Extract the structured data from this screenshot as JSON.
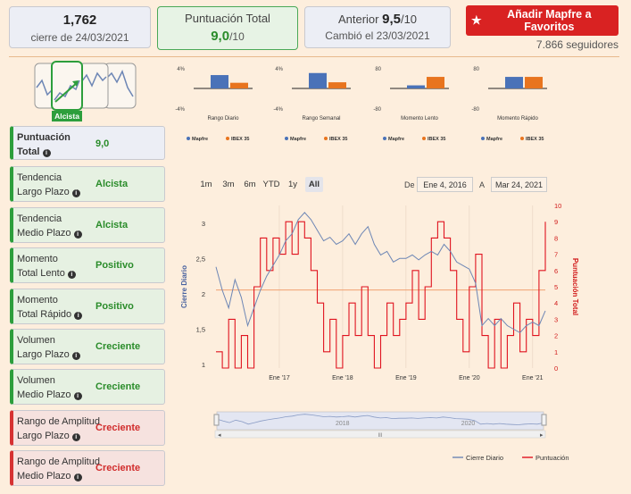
{
  "header": {
    "price": "1,762",
    "price_sub": "cierre de 24/03/2021",
    "score_title": "Puntuación Total",
    "score_value": "9,0",
    "score_max": "/10",
    "prev_label": "Anterior",
    "prev_value": "9,5",
    "prev_max": "/10",
    "prev_sub": "Cambió el 23/03/2021",
    "favorite_button": "Añadir Mapfre a Favoritos",
    "followers": "7.866 seguidores"
  },
  "trend": {
    "label": "Alcista",
    "color": "#2a9d3a"
  },
  "indicators": [
    {
      "l1": "Puntuación",
      "l2": "Total",
      "value": "9,0",
      "style": "blue"
    },
    {
      "l1": "Tendencia",
      "l2": "Largo Plazo",
      "value": "Alcista",
      "style": "green"
    },
    {
      "l1": "Tendencia",
      "l2": "Medio Plazo",
      "value": "Alcista",
      "style": "green"
    },
    {
      "l1": "Momento",
      "l2": "Total Lento",
      "value": "Positivo",
      "style": "green"
    },
    {
      "l1": "Momento",
      "l2": "Total Rápido",
      "value": "Positivo",
      "style": "green"
    },
    {
      "l1": "Volumen",
      "l2": "Largo Plazo",
      "value": "Creciente",
      "style": "green"
    },
    {
      "l1": "Volumen",
      "l2": "Medio Plazo",
      "value": "Creciente",
      "style": "green"
    },
    {
      "l1": "Rango de Amplitud",
      "l2": "Largo Plazo",
      "value": "Creciente",
      "style": "red"
    },
    {
      "l1": "Rango de Amplitud",
      "l2": "Medio Plazo",
      "value": "Creciente",
      "style": "red"
    }
  ],
  "colors": {
    "mapfre": "#4a72b8",
    "ibex": "#e8741e",
    "price_line": "#6d86b5",
    "score_line": "#e0131f",
    "accent_green": "#2d9e3c",
    "accent_red": "#d92222"
  },
  "chart_data": [
    {
      "type": "bar",
      "title": "Rango Diario",
      "ylim": [
        -4,
        4
      ],
      "tick_top": "4%",
      "tick_bottom": "-4%",
      "series": [
        {
          "name": "Mapfre",
          "values": [
            2.6
          ]
        },
        {
          "name": "IBEX 35",
          "values": [
            1.1
          ]
        }
      ]
    },
    {
      "type": "bar",
      "title": "Rango Semanal",
      "ylim": [
        -4,
        4
      ],
      "tick_top": "4%",
      "tick_bottom": "-4%",
      "series": [
        {
          "name": "Mapfre",
          "values": [
            3.0
          ]
        },
        {
          "name": "IBEX 35",
          "values": [
            1.2
          ]
        }
      ]
    },
    {
      "type": "bar",
      "title": "Momento Lento",
      "ylim": [
        -80,
        80
      ],
      "tick_top": "80",
      "tick_bottom": "-80",
      "series": [
        {
          "name": "Mapfre",
          "values": [
            12
          ]
        },
        {
          "name": "IBEX 35",
          "values": [
            45
          ]
        }
      ]
    },
    {
      "type": "bar",
      "title": "Momento Rápido",
      "ylim": [
        -80,
        80
      ],
      "tick_top": "80",
      "tick_bottom": "-80",
      "series": [
        {
          "name": "Mapfre",
          "values": [
            45
          ]
        },
        {
          "name": "IBEX 35",
          "values": [
            45
          ]
        }
      ]
    },
    {
      "type": "line",
      "ylabel": "Cierre Diario",
      "ylabel_right": "Puntuación Total",
      "x_ticks": [
        "Ene '17",
        "Ene '18",
        "Ene '19",
        "Ene '20",
        "Ene '21"
      ],
      "y_ticks": [
        "1",
        "1,5",
        "2",
        "2,5",
        "3"
      ],
      "ylim": [
        0.95,
        3.25
      ],
      "y2_ticks": [
        "0",
        "1",
        "2",
        "3",
        "4",
        "5",
        "6",
        "7",
        "8",
        "9",
        "10"
      ],
      "y2lim": [
        0,
        10
      ],
      "range_buttons": [
        "1m",
        "3m",
        "6m",
        "YTD",
        "1y",
        "All"
      ],
      "range_active": "All",
      "date_from_label": "De",
      "date_from": "Ene 4, 2016",
      "date_to_label": "A",
      "date_to": "Mar 24, 2021",
      "navigator_ticks": [
        "2018",
        "2020"
      ],
      "legend": [
        "Cierre Diario",
        "Puntuación"
      ],
      "reference_value": 4.8,
      "price_points": [
        [
          2016.0,
          2.38
        ],
        [
          2016.1,
          2.05
        ],
        [
          2016.2,
          1.8
        ],
        [
          2016.3,
          2.2
        ],
        [
          2016.4,
          1.95
        ],
        [
          2016.5,
          1.55
        ],
        [
          2016.6,
          1.8
        ],
        [
          2016.7,
          2.05
        ],
        [
          2016.8,
          2.25
        ],
        [
          2016.9,
          2.4
        ],
        [
          2017.0,
          2.55
        ],
        [
          2017.1,
          2.75
        ],
        [
          2017.2,
          2.85
        ],
        [
          2017.3,
          3.05
        ],
        [
          2017.4,
          3.15
        ],
        [
          2017.5,
          3.05
        ],
        [
          2017.6,
          2.9
        ],
        [
          2017.7,
          2.75
        ],
        [
          2017.8,
          2.8
        ],
        [
          2017.9,
          2.7
        ],
        [
          2018.0,
          2.75
        ],
        [
          2018.1,
          2.85
        ],
        [
          2018.2,
          2.7
        ],
        [
          2018.3,
          2.85
        ],
        [
          2018.4,
          2.95
        ],
        [
          2018.5,
          2.7
        ],
        [
          2018.6,
          2.55
        ],
        [
          2018.7,
          2.6
        ],
        [
          2018.8,
          2.45
        ],
        [
          2018.9,
          2.5
        ],
        [
          2019.0,
          2.5
        ],
        [
          2019.1,
          2.55
        ],
        [
          2019.2,
          2.48
        ],
        [
          2019.3,
          2.55
        ],
        [
          2019.4,
          2.6
        ],
        [
          2019.5,
          2.55
        ],
        [
          2019.6,
          2.7
        ],
        [
          2019.7,
          2.6
        ],
        [
          2019.8,
          2.45
        ],
        [
          2019.9,
          2.4
        ],
        [
          2020.0,
          2.35
        ],
        [
          2020.1,
          2.15
        ],
        [
          2020.2,
          1.55
        ],
        [
          2020.3,
          1.65
        ],
        [
          2020.4,
          1.55
        ],
        [
          2020.5,
          1.65
        ],
        [
          2020.6,
          1.55
        ],
        [
          2020.7,
          1.5
        ],
        [
          2020.8,
          1.45
        ],
        [
          2020.9,
          1.55
        ],
        [
          2021.0,
          1.6
        ],
        [
          2021.1,
          1.55
        ],
        [
          2021.2,
          1.76
        ]
      ],
      "score_steps": [
        [
          2016.0,
          1
        ],
        [
          2016.1,
          0
        ],
        [
          2016.2,
          3
        ],
        [
          2016.3,
          0
        ],
        [
          2016.4,
          2
        ],
        [
          2016.5,
          0
        ],
        [
          2016.6,
          5
        ],
        [
          2016.7,
          8
        ],
        [
          2016.8,
          6
        ],
        [
          2016.9,
          8
        ],
        [
          2017.0,
          7
        ],
        [
          2017.1,
          9
        ],
        [
          2017.2,
          7
        ],
        [
          2017.3,
          9
        ],
        [
          2017.4,
          8
        ],
        [
          2017.5,
          6
        ],
        [
          2017.6,
          4
        ],
        [
          2017.7,
          1
        ],
        [
          2017.8,
          3
        ],
        [
          2017.9,
          0
        ],
        [
          2018.0,
          2
        ],
        [
          2018.1,
          4
        ],
        [
          2018.2,
          2
        ],
        [
          2018.3,
          5
        ],
        [
          2018.4,
          2
        ],
        [
          2018.5,
          0
        ],
        [
          2018.6,
          2
        ],
        [
          2018.7,
          4
        ],
        [
          2018.8,
          2
        ],
        [
          2018.9,
          3
        ],
        [
          2019.0,
          4
        ],
        [
          2019.1,
          6
        ],
        [
          2019.2,
          3
        ],
        [
          2019.3,
          5
        ],
        [
          2019.4,
          8
        ],
        [
          2019.5,
          9
        ],
        [
          2019.6,
          8
        ],
        [
          2019.7,
          6
        ],
        [
          2019.8,
          3
        ],
        [
          2019.9,
          1
        ],
        [
          2020.0,
          5
        ],
        [
          2020.1,
          7
        ],
        [
          2020.2,
          2
        ],
        [
          2020.3,
          0
        ],
        [
          2020.4,
          3
        ],
        [
          2020.5,
          0
        ],
        [
          2020.6,
          2
        ],
        [
          2020.7,
          4
        ],
        [
          2020.8,
          1
        ],
        [
          2020.9,
          3
        ],
        [
          2021.0,
          2
        ],
        [
          2021.1,
          6
        ],
        [
          2021.2,
          9
        ]
      ]
    }
  ]
}
